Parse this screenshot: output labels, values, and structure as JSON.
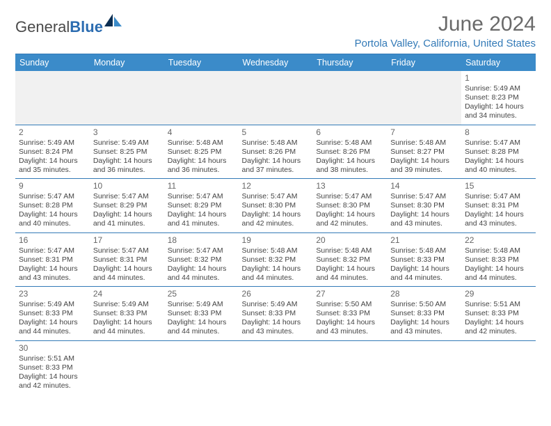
{
  "brand": {
    "part1": "General",
    "part2": "Blue"
  },
  "title": "June 2024",
  "location": "Portola Valley, California, United States",
  "colors": {
    "header_bg": "#3b8bc9",
    "accent": "#337ab7",
    "text": "#444444",
    "title_text": "#6a6a6a"
  },
  "weekdays": [
    "Sunday",
    "Monday",
    "Tuesday",
    "Wednesday",
    "Thursday",
    "Friday",
    "Saturday"
  ],
  "weeks": [
    [
      null,
      null,
      null,
      null,
      null,
      null,
      {
        "n": "1",
        "sr": "Sunrise: 5:49 AM",
        "ss": "Sunset: 8:23 PM",
        "d1": "Daylight: 14 hours",
        "d2": "and 34 minutes."
      }
    ],
    [
      {
        "n": "2",
        "sr": "Sunrise: 5:49 AM",
        "ss": "Sunset: 8:24 PM",
        "d1": "Daylight: 14 hours",
        "d2": "and 35 minutes."
      },
      {
        "n": "3",
        "sr": "Sunrise: 5:49 AM",
        "ss": "Sunset: 8:25 PM",
        "d1": "Daylight: 14 hours",
        "d2": "and 36 minutes."
      },
      {
        "n": "4",
        "sr": "Sunrise: 5:48 AM",
        "ss": "Sunset: 8:25 PM",
        "d1": "Daylight: 14 hours",
        "d2": "and 36 minutes."
      },
      {
        "n": "5",
        "sr": "Sunrise: 5:48 AM",
        "ss": "Sunset: 8:26 PM",
        "d1": "Daylight: 14 hours",
        "d2": "and 37 minutes."
      },
      {
        "n": "6",
        "sr": "Sunrise: 5:48 AM",
        "ss": "Sunset: 8:26 PM",
        "d1": "Daylight: 14 hours",
        "d2": "and 38 minutes."
      },
      {
        "n": "7",
        "sr": "Sunrise: 5:48 AM",
        "ss": "Sunset: 8:27 PM",
        "d1": "Daylight: 14 hours",
        "d2": "and 39 minutes."
      },
      {
        "n": "8",
        "sr": "Sunrise: 5:47 AM",
        "ss": "Sunset: 8:28 PM",
        "d1": "Daylight: 14 hours",
        "d2": "and 40 minutes."
      }
    ],
    [
      {
        "n": "9",
        "sr": "Sunrise: 5:47 AM",
        "ss": "Sunset: 8:28 PM",
        "d1": "Daylight: 14 hours",
        "d2": "and 40 minutes."
      },
      {
        "n": "10",
        "sr": "Sunrise: 5:47 AM",
        "ss": "Sunset: 8:29 PM",
        "d1": "Daylight: 14 hours",
        "d2": "and 41 minutes."
      },
      {
        "n": "11",
        "sr": "Sunrise: 5:47 AM",
        "ss": "Sunset: 8:29 PM",
        "d1": "Daylight: 14 hours",
        "d2": "and 41 minutes."
      },
      {
        "n": "12",
        "sr": "Sunrise: 5:47 AM",
        "ss": "Sunset: 8:30 PM",
        "d1": "Daylight: 14 hours",
        "d2": "and 42 minutes."
      },
      {
        "n": "13",
        "sr": "Sunrise: 5:47 AM",
        "ss": "Sunset: 8:30 PM",
        "d1": "Daylight: 14 hours",
        "d2": "and 42 minutes."
      },
      {
        "n": "14",
        "sr": "Sunrise: 5:47 AM",
        "ss": "Sunset: 8:30 PM",
        "d1": "Daylight: 14 hours",
        "d2": "and 43 minutes."
      },
      {
        "n": "15",
        "sr": "Sunrise: 5:47 AM",
        "ss": "Sunset: 8:31 PM",
        "d1": "Daylight: 14 hours",
        "d2": "and 43 minutes."
      }
    ],
    [
      {
        "n": "16",
        "sr": "Sunrise: 5:47 AM",
        "ss": "Sunset: 8:31 PM",
        "d1": "Daylight: 14 hours",
        "d2": "and 43 minutes."
      },
      {
        "n": "17",
        "sr": "Sunrise: 5:47 AM",
        "ss": "Sunset: 8:31 PM",
        "d1": "Daylight: 14 hours",
        "d2": "and 44 minutes."
      },
      {
        "n": "18",
        "sr": "Sunrise: 5:47 AM",
        "ss": "Sunset: 8:32 PM",
        "d1": "Daylight: 14 hours",
        "d2": "and 44 minutes."
      },
      {
        "n": "19",
        "sr": "Sunrise: 5:48 AM",
        "ss": "Sunset: 8:32 PM",
        "d1": "Daylight: 14 hours",
        "d2": "and 44 minutes."
      },
      {
        "n": "20",
        "sr": "Sunrise: 5:48 AM",
        "ss": "Sunset: 8:32 PM",
        "d1": "Daylight: 14 hours",
        "d2": "and 44 minutes."
      },
      {
        "n": "21",
        "sr": "Sunrise: 5:48 AM",
        "ss": "Sunset: 8:33 PM",
        "d1": "Daylight: 14 hours",
        "d2": "and 44 minutes."
      },
      {
        "n": "22",
        "sr": "Sunrise: 5:48 AM",
        "ss": "Sunset: 8:33 PM",
        "d1": "Daylight: 14 hours",
        "d2": "and 44 minutes."
      }
    ],
    [
      {
        "n": "23",
        "sr": "Sunrise: 5:49 AM",
        "ss": "Sunset: 8:33 PM",
        "d1": "Daylight: 14 hours",
        "d2": "and 44 minutes."
      },
      {
        "n": "24",
        "sr": "Sunrise: 5:49 AM",
        "ss": "Sunset: 8:33 PM",
        "d1": "Daylight: 14 hours",
        "d2": "and 44 minutes."
      },
      {
        "n": "25",
        "sr": "Sunrise: 5:49 AM",
        "ss": "Sunset: 8:33 PM",
        "d1": "Daylight: 14 hours",
        "d2": "and 44 minutes."
      },
      {
        "n": "26",
        "sr": "Sunrise: 5:49 AM",
        "ss": "Sunset: 8:33 PM",
        "d1": "Daylight: 14 hours",
        "d2": "and 43 minutes."
      },
      {
        "n": "27",
        "sr": "Sunrise: 5:50 AM",
        "ss": "Sunset: 8:33 PM",
        "d1": "Daylight: 14 hours",
        "d2": "and 43 minutes."
      },
      {
        "n": "28",
        "sr": "Sunrise: 5:50 AM",
        "ss": "Sunset: 8:33 PM",
        "d1": "Daylight: 14 hours",
        "d2": "and 43 minutes."
      },
      {
        "n": "29",
        "sr": "Sunrise: 5:51 AM",
        "ss": "Sunset: 8:33 PM",
        "d1": "Daylight: 14 hours",
        "d2": "and 42 minutes."
      }
    ],
    [
      {
        "n": "30",
        "sr": "Sunrise: 5:51 AM",
        "ss": "Sunset: 8:33 PM",
        "d1": "Daylight: 14 hours",
        "d2": "and 42 minutes."
      },
      null,
      null,
      null,
      null,
      null,
      null
    ]
  ]
}
